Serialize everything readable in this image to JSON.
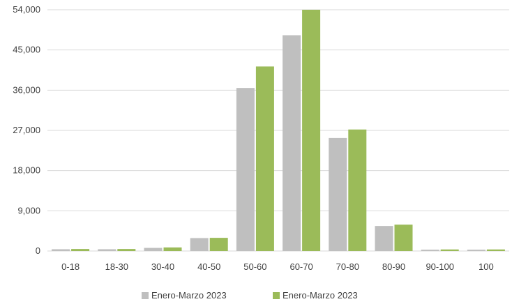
{
  "chart_data": {
    "type": "bar",
    "categories": [
      "0-18",
      "18-30",
      "30-40",
      "40-50",
      "50-60",
      "60-70",
      "70-80",
      "80-90",
      "90-100",
      "100"
    ],
    "series": [
      {
        "name": "Enero-Marzo 2023",
        "color": "#bfbfbf",
        "values": [
          400,
          400,
          700,
          2900,
          36500,
          48300,
          25300,
          5600,
          300,
          300
        ]
      },
      {
        "name": "Enero-Marzo 2023",
        "color": "#9bbb59",
        "values": [
          450,
          450,
          800,
          2950,
          41300,
          54000,
          27200,
          5900,
          350,
          350
        ]
      }
    ],
    "ylim": [
      0,
      54000
    ],
    "yticks": [
      0,
      9000,
      18000,
      27000,
      36000,
      45000,
      54000
    ],
    "ytick_labels": [
      "0",
      "9,000",
      "18,000",
      "27,000",
      "36,000",
      "45,000",
      "54,000"
    ],
    "grid": true,
    "legend_position": "bottom",
    "gridline_color": "#d9d9d9"
  }
}
